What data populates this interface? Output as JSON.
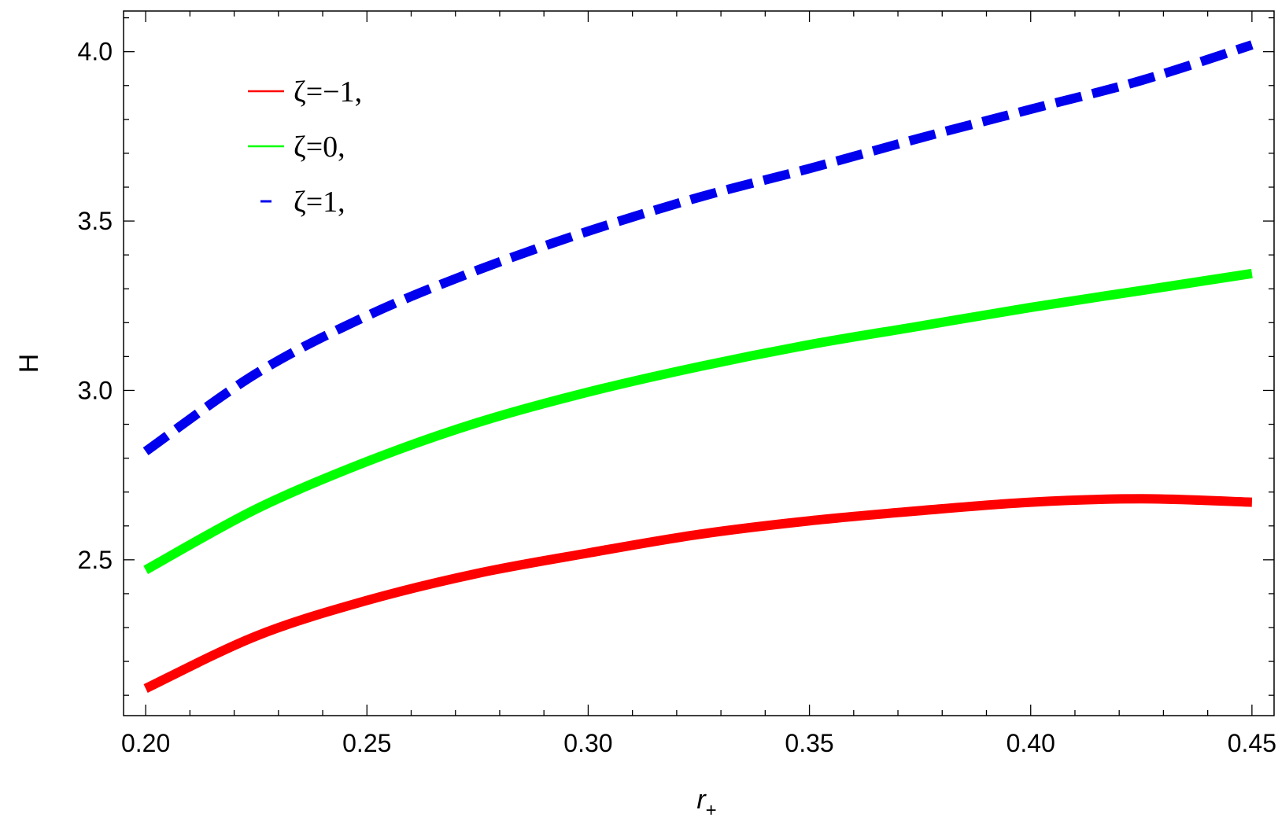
{
  "chart_data": {
    "type": "line",
    "xlabel": "r",
    "xlabel_subscript": "+",
    "ylabel": "H",
    "xlim": [
      0.195,
      0.455
    ],
    "ylim": [
      2.04,
      4.12
    ],
    "x_ticks": [
      0.2,
      0.25,
      0.3,
      0.35,
      0.4,
      0.45
    ],
    "x_tick_labels": [
      "0.20",
      "0.25",
      "0.30",
      "0.35",
      "0.40",
      "0.45"
    ],
    "y_ticks": [
      2.5,
      3.0,
      3.5,
      4.0
    ],
    "y_tick_labels": [
      "2.5",
      "3.0",
      "3.5",
      "4.0"
    ],
    "x_minor_step": 0.01,
    "y_minor_step": 0.1,
    "legend_position": "top-left",
    "grid": false,
    "x": [
      0.2,
      0.225,
      0.25,
      0.275,
      0.3,
      0.325,
      0.35,
      0.375,
      0.4,
      0.425,
      0.45
    ],
    "series": [
      {
        "name": "ζ=−1,",
        "color": "#ff0000",
        "style": "solid",
        "values": [
          2.12,
          2.275,
          2.38,
          2.46,
          2.52,
          2.575,
          2.615,
          2.645,
          2.67,
          2.68,
          2.67
        ]
      },
      {
        "name": "ζ=0,",
        "color": "#00ff00",
        "style": "solid",
        "values": [
          2.47,
          2.65,
          2.79,
          2.905,
          2.995,
          3.07,
          3.135,
          3.19,
          3.245,
          3.295,
          3.345
        ]
      },
      {
        "name": "ζ=1,",
        "color": "#0000ee",
        "style": "dashed",
        "values": [
          2.82,
          3.05,
          3.22,
          3.355,
          3.47,
          3.57,
          3.655,
          3.745,
          3.83,
          3.915,
          4.02
        ]
      }
    ]
  }
}
